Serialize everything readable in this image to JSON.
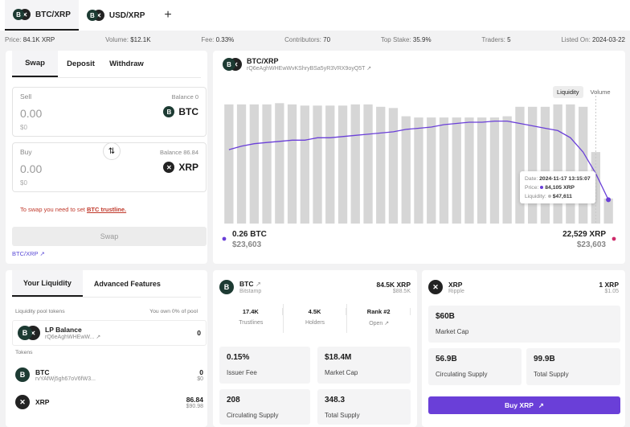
{
  "tabs": [
    {
      "label": "BTC/XRP",
      "active": true
    },
    {
      "label": "USD/XRP",
      "active": false
    }
  ],
  "add_tab": "+",
  "stats": {
    "price_label": "Price:",
    "price": "84.1K XRP",
    "volume_label": "Volume:",
    "volume": "$12.1K",
    "fee_label": "Fee:",
    "fee": "0.33%",
    "contributors_label": "Contributors:",
    "contributors": "70",
    "topstake_label": "Top Stake:",
    "topstake": "35.9%",
    "traders_label": "Traders:",
    "traders": "5",
    "listed_label": "Listed On:",
    "listed": "2024-03-22"
  },
  "swap": {
    "tabs": [
      "Swap",
      "Deposit",
      "Withdraw"
    ],
    "sell": {
      "label": "Sell",
      "balance": "Balance 0",
      "amount": "0.00",
      "usd": "$0",
      "token": "BTC"
    },
    "buy": {
      "label": "Buy",
      "balance": "Balance 86.84",
      "amount": "0.00",
      "usd": "$0",
      "token": "XRP"
    },
    "switch_icon": "⇅",
    "warning_prefix": "To swap you need to set ",
    "warning_link": "BTC trustline.",
    "button": "Swap",
    "pair_link": "BTC/XRP"
  },
  "chart_card": {
    "pair": "BTC/XRP",
    "address": "rQ6eAghWHEwWvKShryBSa5yR3VRX9oyQ5T",
    "toggle": [
      "Liquidity",
      "Volume"
    ],
    "left_amount": "0.26 BTC",
    "left_usd": "$23,603",
    "right_amount": "22,529 XRP",
    "right_usd": "$23,603",
    "tooltip": {
      "date_label": "Date:",
      "date": "2024-11-17 13:15:07",
      "price_label": "Price:",
      "price": "84,105 XRP",
      "liq_label": "Liquidity:",
      "liq": "$47,611"
    }
  },
  "chart_data": {
    "type": "bar",
    "series": [
      {
        "values": [
          100,
          100,
          100,
          100,
          101,
          100,
          99,
          99,
          99,
          99,
          100,
          100,
          98,
          97,
          90,
          89,
          89,
          89,
          89,
          89,
          89,
          89,
          90,
          98,
          98,
          98,
          100,
          100,
          98,
          60,
          21
        ]
      },
      {
        "values": [
          62,
          65,
          67,
          68,
          69,
          70,
          70,
          72,
          72,
          73,
          74,
          75,
          76,
          77,
          79,
          80,
          81,
          83,
          84,
          85,
          85,
          86,
          86,
          84,
          82,
          80,
          78,
          72,
          60,
          42,
          20
        ]
      }
    ],
    "colors": {
      "bars": "#d6d6d6",
      "line": "#6a3fd8",
      "marker": "#ce2a6a"
    },
    "ylim": [
      0,
      110
    ],
    "tooltip_index": 29
  },
  "liquidity": {
    "tabs": [
      "Your Liquidity",
      "Advanced Features"
    ],
    "pool_label": "Liquidity pool tokens",
    "pool_share": "You own 0% of pool",
    "lp": {
      "name": "LP Balance",
      "address": "rQ6eAghWHEwW...",
      "value": "0"
    },
    "tokens_label": "Tokens",
    "btc": {
      "name": "BTC",
      "address": "rvYAfWj5gh67oV6fW3...",
      "value": "0",
      "usd": "$0"
    },
    "xrp": {
      "name": "XRP",
      "value": "86.84",
      "usd": "$90.98"
    }
  },
  "btc_card": {
    "name": "BTC",
    "issuer": "Bitstamp",
    "price": "84.5K XRP",
    "usd": "$88.5K",
    "stats": [
      {
        "value": "17.4K",
        "label": "Trustlines"
      },
      {
        "value": "4.5K",
        "label": "Holders"
      },
      {
        "value": "Rank #2",
        "label": "Open"
      }
    ],
    "boxes": [
      {
        "value": "0.15%",
        "label": "Issuer Fee"
      },
      {
        "value": "$18.4M",
        "label": "Market Cap"
      },
      {
        "value": "208",
        "label": "Circulating Supply"
      },
      {
        "value": "348.3",
        "label": "Total Supply"
      }
    ]
  },
  "xrp_card": {
    "name": "XRP",
    "issuer": "Ripple",
    "price": "1 XRP",
    "usd": "$1.05",
    "boxes": [
      {
        "value": "$60B",
        "label": "Market Cap"
      },
      {
        "value": "56.9B",
        "label": "Circulating Supply"
      },
      {
        "value": "99.9B",
        "label": "Total Supply"
      }
    ],
    "buy_button": "Buy XRP"
  }
}
